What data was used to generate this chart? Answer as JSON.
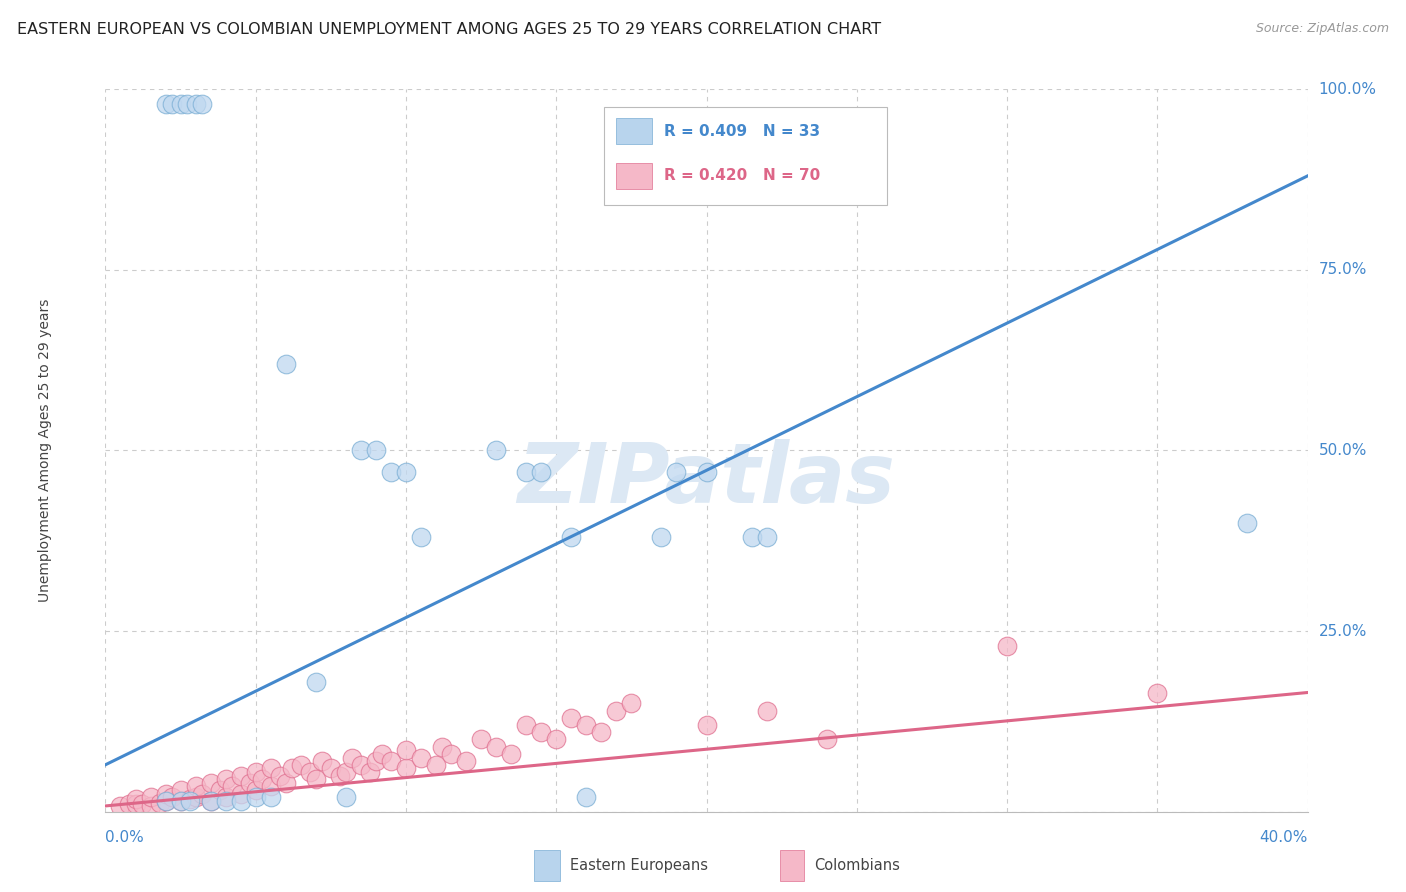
{
  "title": "EASTERN EUROPEAN VS COLOMBIAN UNEMPLOYMENT AMONG AGES 25 TO 29 YEARS CORRELATION CHART",
  "source": "Source: ZipAtlas.com",
  "xlim": [
    0.0,
    0.4
  ],
  "ylim": [
    0.0,
    1.0
  ],
  "watermark": "ZIPatlas",
  "legend_entries": [
    {
      "label": "R = 0.409   N = 33",
      "color": "#b8d4ed",
      "edge": "#7aaed4"
    },
    {
      "label": "R = 0.420   N = 70",
      "color": "#f5b8c8",
      "edge": "#e07090"
    }
  ],
  "blue_scatter": {
    "color": "#c0d8f0",
    "edge_color": "#7aaed4",
    "x": [
      0.02,
      0.022,
      0.025,
      0.027,
      0.03,
      0.032,
      0.02,
      0.025,
      0.028,
      0.035,
      0.04,
      0.045,
      0.05,
      0.055,
      0.06,
      0.07,
      0.08,
      0.085,
      0.09,
      0.095,
      0.1,
      0.105,
      0.13,
      0.14,
      0.145,
      0.155,
      0.16,
      0.185,
      0.19,
      0.2,
      0.215,
      0.22,
      0.38
    ],
    "y": [
      0.98,
      0.98,
      0.98,
      0.98,
      0.98,
      0.98,
      0.015,
      0.015,
      0.015,
      0.015,
      0.015,
      0.015,
      0.02,
      0.02,
      0.62,
      0.18,
      0.02,
      0.5,
      0.5,
      0.47,
      0.47,
      0.38,
      0.5,
      0.47,
      0.47,
      0.38,
      0.02,
      0.38,
      0.47,
      0.47,
      0.38,
      0.38,
      0.4
    ]
  },
  "pink_scatter": {
    "color": "#f5b8c8",
    "edge_color": "#e07090",
    "x": [
      0.005,
      0.008,
      0.01,
      0.01,
      0.012,
      0.015,
      0.015,
      0.018,
      0.02,
      0.02,
      0.022,
      0.025,
      0.025,
      0.028,
      0.03,
      0.03,
      0.032,
      0.035,
      0.035,
      0.038,
      0.04,
      0.04,
      0.042,
      0.045,
      0.045,
      0.048,
      0.05,
      0.05,
      0.052,
      0.055,
      0.055,
      0.058,
      0.06,
      0.062,
      0.065,
      0.068,
      0.07,
      0.072,
      0.075,
      0.078,
      0.08,
      0.082,
      0.085,
      0.088,
      0.09,
      0.092,
      0.095,
      0.1,
      0.1,
      0.105,
      0.11,
      0.112,
      0.115,
      0.12,
      0.125,
      0.13,
      0.135,
      0.14,
      0.145,
      0.15,
      0.155,
      0.16,
      0.165,
      0.17,
      0.175,
      0.2,
      0.22,
      0.24,
      0.3,
      0.35
    ],
    "y": [
      0.008,
      0.01,
      0.01,
      0.018,
      0.01,
      0.008,
      0.02,
      0.012,
      0.015,
      0.025,
      0.02,
      0.015,
      0.03,
      0.018,
      0.02,
      0.035,
      0.025,
      0.015,
      0.04,
      0.03,
      0.02,
      0.045,
      0.035,
      0.025,
      0.05,
      0.04,
      0.03,
      0.055,
      0.045,
      0.035,
      0.06,
      0.05,
      0.04,
      0.06,
      0.065,
      0.055,
      0.045,
      0.07,
      0.06,
      0.05,
      0.055,
      0.075,
      0.065,
      0.055,
      0.07,
      0.08,
      0.07,
      0.06,
      0.085,
      0.075,
      0.065,
      0.09,
      0.08,
      0.07,
      0.1,
      0.09,
      0.08,
      0.12,
      0.11,
      0.1,
      0.13,
      0.12,
      0.11,
      0.14,
      0.15,
      0.12,
      0.14,
      0.1,
      0.23,
      0.165
    ]
  },
  "blue_line": {
    "color": "#4488cc",
    "x0": 0.0,
    "y0": 0.065,
    "x1": 0.4,
    "y1": 0.88
  },
  "pink_line": {
    "color": "#dd6688",
    "x0": 0.0,
    "y0": 0.008,
    "x1": 0.4,
    "y1": 0.165
  },
  "bg_color": "#ffffff",
  "grid_color": "#cccccc",
  "title_fontsize": 11.5,
  "tick_fontsize": 11,
  "watermark_color": "#dce8f4",
  "watermark_fontsize": 60,
  "ylabel_ticks": [
    0.0,
    0.25,
    0.5,
    0.75,
    1.0
  ],
  "ylabel_labels": [
    "",
    "25.0%",
    "50.0%",
    "75.0%",
    "100.0%"
  ],
  "x_ticks": [
    0.0,
    0.05,
    0.1,
    0.15,
    0.2,
    0.25,
    0.3,
    0.35,
    0.4
  ]
}
